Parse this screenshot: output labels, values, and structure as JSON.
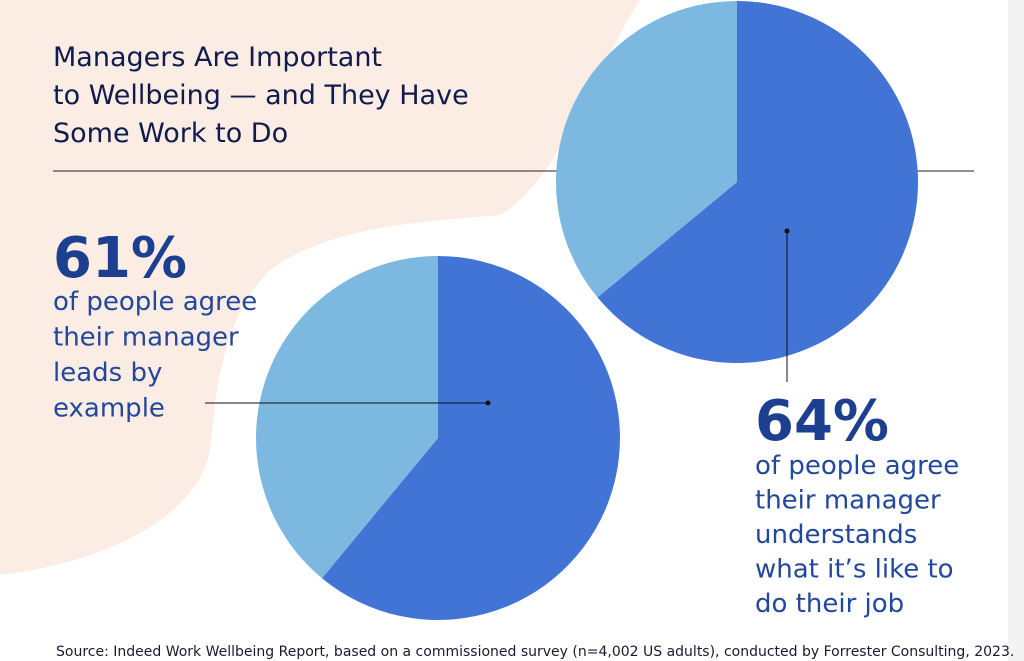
{
  "title": [
    "Managers Are Important",
    "to Wellbeing — and They Have",
    "Some Work to Do"
  ],
  "source": "Source: Indeed Work Wellbeing Report, based on a commissioned survey (n=4,002 US adults), conducted by Forrester Consulting, 2023.",
  "chart_data": [
    {
      "type": "pie",
      "values": [
        64,
        36
      ],
      "value_labels": [
        "64%",
        null
      ],
      "colors": [
        "#4174d4",
        "#7cb8df"
      ],
      "description": [
        "of people agree",
        "their manager",
        "understands",
        "what it’s like to",
        "do their job"
      ]
    },
    {
      "type": "pie",
      "values": [
        61,
        39
      ],
      "value_labels": [
        "61%",
        null
      ],
      "colors": [
        "#4174d4",
        "#7cb8df"
      ],
      "description": [
        "of people agree",
        "their manager",
        "leads by",
        "example"
      ]
    }
  ]
}
